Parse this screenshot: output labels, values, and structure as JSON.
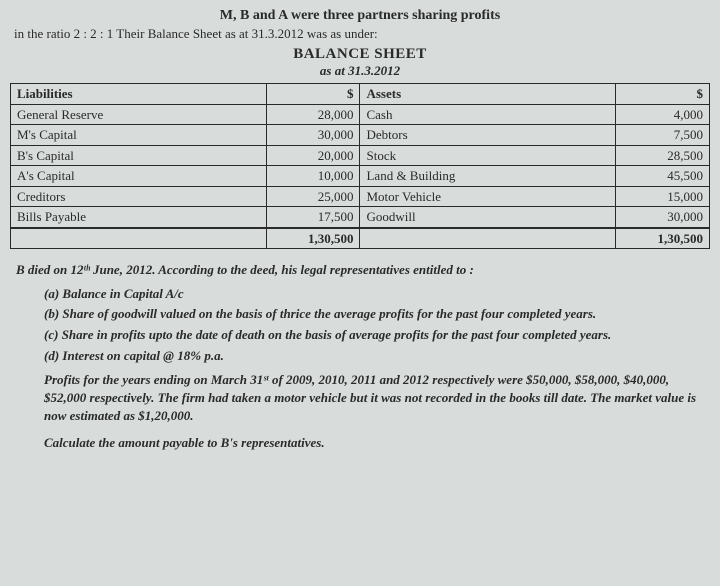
{
  "intro": {
    "line1": "M, B and A were three partners sharing profits",
    "line2": "in the ratio 2 : 2 : 1 Their Balance Sheet as at 31.3.2012 was as under:"
  },
  "balance_sheet": {
    "title": "BALANCE SHEET",
    "as_at": "as at 31.3.2012",
    "headers": {
      "liab": "Liabilities",
      "amt1": "$",
      "assets": "Assets",
      "amt2": "$"
    },
    "rows": [
      {
        "l": "General Reserve",
        "la": "28,000",
        "a": "Cash",
        "aa": "4,000"
      },
      {
        "l": "M's Capital",
        "la": "30,000",
        "a": "Debtors",
        "aa": "7,500"
      },
      {
        "l": "B's Capital",
        "la": "20,000",
        "a": "Stock",
        "aa": "28,500"
      },
      {
        "l": "A's Capital",
        "la": "10,000",
        "a": "Land & Building",
        "aa": "45,500"
      },
      {
        "l": "Creditors",
        "la": "25,000",
        "a": "Motor Vehicle",
        "aa": "15,000"
      },
      {
        "l": "Bills Payable",
        "la": "17,500",
        "a": "Goodwill",
        "aa": "30,000"
      }
    ],
    "total": {
      "l": "",
      "la": "1,30,500",
      "a": "",
      "aa": "1,30,500"
    }
  },
  "narrative": "B died on 12ᵗʰ June, 2012. According to the deed, his legal representatives entitled to :",
  "clauses": {
    "a": {
      "label": "(a)",
      "text": "Balance in Capital A/c"
    },
    "b": {
      "label": "(b)",
      "text": "Share of goodwill valued on the basis of thrice the average profits for the past four completed years."
    },
    "c": {
      "label": "(c)",
      "text": "Share in profits upto the date of death on the basis of average profits for the past four completed years."
    },
    "d": {
      "label": "(d)",
      "text": "Interest on capital @ 18% p.a."
    }
  },
  "profits_note": "Profits for the years ending on March 31ˢᵗ of 2009, 2010, 2011 and 2012 respectively were $50,000, $58,000, $40,000, $52,000 respectively. The firm had taken a motor vehicle but it was not recorded in the books till date. The market value is now estimated as $1,20,000.",
  "calculate": "Calculate the amount payable to B's representatives."
}
